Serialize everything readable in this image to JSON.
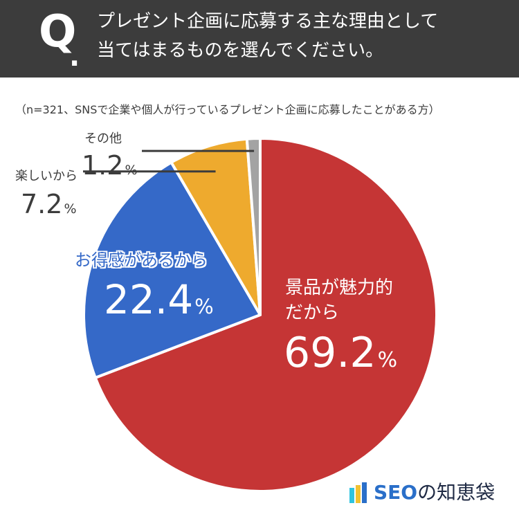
{
  "header": {
    "q_mark": "Q",
    "q_dot": ".",
    "line1": "プレゼント企画に応募する主な理由として",
    "line2": "当てはまるものを選んでください。"
  },
  "note": "（n=321、SNSで企業や個人が行っているプレゼント企画に応募したことがある方）",
  "colors": {
    "header_bg": "#3c3c3c",
    "red": "#c53535",
    "blue": "#3569c8",
    "yellow": "#eeaa2e",
    "gray": "#a3a3a3"
  },
  "chart_data": {
    "type": "pie",
    "unit": "%",
    "start_angle_deg": 0,
    "direction": "clockwise",
    "slices": [
      {
        "label": "景品が魅力的だから",
        "label_lines": [
          "景品が魅力的",
          "だから"
        ],
        "value": 69.2,
        "value_text": "69.2",
        "color": "#c53535"
      },
      {
        "label": "お得感があるから",
        "label_lines": [
          "お得感があるから"
        ],
        "value": 22.4,
        "value_text": "22.4",
        "color": "#3569c8"
      },
      {
        "label": "楽しいから",
        "label_lines": [
          "楽しいから"
        ],
        "value": 7.2,
        "value_text": "7.2",
        "color": "#eeaa2e"
      },
      {
        "label": "その他",
        "label_lines": [
          "その他"
        ],
        "value": 1.2,
        "value_text": "1.2",
        "color": "#a3a3a3"
      }
    ]
  },
  "logo": {
    "seo": "SEO",
    "rest": "の知恵袋",
    "bar_colors": [
      "#2ec4e0",
      "#f2c230",
      "#2a6fc9"
    ]
  }
}
